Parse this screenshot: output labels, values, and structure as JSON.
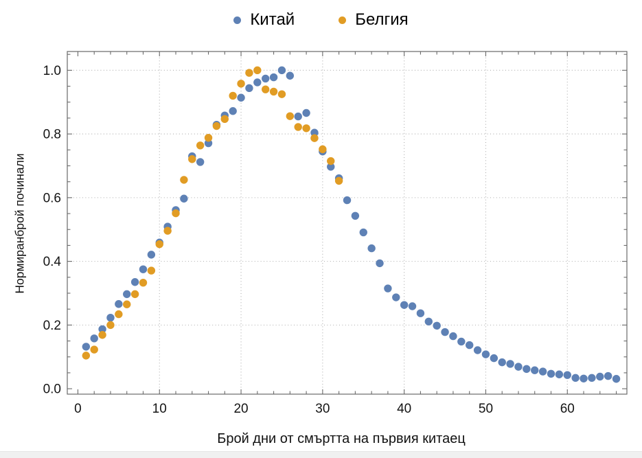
{
  "legend": {
    "items": [
      {
        "label": "Китай",
        "color": "#5E81B5"
      },
      {
        "label": "Белгия",
        "color": "#E19C24"
      }
    ]
  },
  "chart_data": {
    "type": "scatter",
    "title": "",
    "xlabel": "Брой дни от смъртта на първия китаец",
    "ylabel": "Нормиранброй починали",
    "xlim": [
      -1.3,
      67.3
    ],
    "ylim": [
      -0.017,
      1.059
    ],
    "x_ticks": [
      0,
      10,
      20,
      30,
      40,
      50,
      60
    ],
    "x_tick_labels": [
      "0",
      "10",
      "20",
      "30",
      "40",
      "50",
      "60"
    ],
    "y_ticks": [
      0,
      0.2,
      0.4,
      0.6,
      0.8,
      1.0
    ],
    "y_tick_labels": [
      "0.0",
      "0.2",
      "0.4",
      "0.6",
      "0.8",
      "1.0"
    ],
    "x_gridlines": [
      10,
      20,
      30,
      40,
      50,
      60
    ],
    "y_gridlines": [
      0.2,
      0.4,
      0.6,
      0.8,
      1.0
    ],
    "x_minor_step": 2,
    "y_minor_step": 0.05,
    "grid": true,
    "grid_style": "dotted",
    "legend_position": "top-center",
    "frame": true,
    "series": [
      {
        "name": "Китай",
        "color": "#5E81B5",
        "x": [
          1,
          2,
          3,
          4,
          5,
          6,
          7,
          8,
          9,
          10,
          11,
          12,
          13,
          14,
          15,
          16,
          17,
          18,
          19,
          20,
          21,
          22,
          23,
          24,
          25,
          26,
          27,
          28,
          29,
          30,
          31,
          32,
          33,
          34,
          35,
          36,
          37,
          38,
          39,
          40,
          41,
          42,
          43,
          44,
          45,
          46,
          47,
          48,
          49,
          50,
          51,
          52,
          53,
          54,
          55,
          56,
          57,
          58,
          59,
          60,
          61,
          62,
          63,
          64,
          65,
          66
        ],
        "y": [
          0.132,
          0.158,
          0.187,
          0.223,
          0.266,
          0.297,
          0.335,
          0.375,
          0.421,
          0.459,
          0.509,
          0.561,
          0.597,
          0.73,
          0.712,
          0.771,
          0.829,
          0.858,
          0.872,
          0.914,
          0.944,
          0.962,
          0.974,
          0.978,
          1.0,
          0.983,
          0.855,
          0.866,
          0.804,
          0.745,
          0.697,
          0.661,
          0.592,
          0.543,
          0.491,
          0.441,
          0.394,
          0.315,
          0.287,
          0.263,
          0.259,
          0.237,
          0.211,
          0.198,
          0.178,
          0.165,
          0.148,
          0.137,
          0.121,
          0.108,
          0.096,
          0.083,
          0.078,
          0.069,
          0.062,
          0.058,
          0.054,
          0.047,
          0.045,
          0.043,
          0.034,
          0.032,
          0.034,
          0.038,
          0.04,
          0.031
        ]
      },
      {
        "name": "Белгия",
        "color": "#E19C24",
        "x": [
          1,
          2,
          3,
          4,
          5,
          6,
          7,
          8,
          9,
          10,
          11,
          12,
          13,
          14,
          15,
          16,
          17,
          18,
          19,
          20,
          21,
          22,
          23,
          24,
          25,
          26,
          27,
          28,
          29,
          30,
          31,
          32
        ],
        "y": [
          0.104,
          0.123,
          0.169,
          0.2,
          0.234,
          0.265,
          0.297,
          0.333,
          0.371,
          0.454,
          0.496,
          0.551,
          0.656,
          0.721,
          0.764,
          0.788,
          0.825,
          0.847,
          0.92,
          0.958,
          0.992,
          1.0,
          0.94,
          0.933,
          0.925,
          0.856,
          0.822,
          0.818,
          0.787,
          0.752,
          0.715,
          0.653
        ]
      }
    ]
  }
}
